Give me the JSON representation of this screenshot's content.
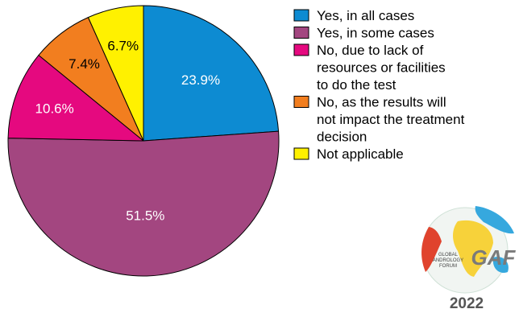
{
  "chart_data": {
    "type": "pie",
    "title": "",
    "categories": [
      "Yes, in all cases",
      "Yes, in some cases",
      "No, due to lack of resources or facilities to do the test",
      "No, as the results will not impact the treatment decision",
      "Not applicable"
    ],
    "legend_lines": [
      [
        "Yes, in all cases"
      ],
      [
        "Yes, in some cases"
      ],
      [
        "No, due to lack of",
        "resources or facilities",
        "to do the test"
      ],
      [
        "No, as the results will",
        "not impact the treatment",
        "decision"
      ],
      [
        "Not applicable"
      ]
    ],
    "values": [
      23.9,
      51.5,
      10.6,
      7.4,
      6.7
    ],
    "labels": [
      "23.9%",
      "51.5%",
      "10.6%",
      "7.4%",
      "6.7%"
    ],
    "colors": [
      "#0D8BD2",
      "#A34680",
      "#E5097F",
      "#F27E1F",
      "#FFF100"
    ],
    "label_colors": [
      "#ffffff",
      "#ffffff",
      "#ffffff",
      "#000000",
      "#000000"
    ],
    "start": "12 o'clock",
    "direction": "clockwise",
    "legend_position": "top-right"
  },
  "logo": {
    "text_lines": [
      "GLOBAL",
      "ANDROLOGY",
      "FORUM"
    ],
    "brand": "GAF",
    "year": "2022"
  }
}
